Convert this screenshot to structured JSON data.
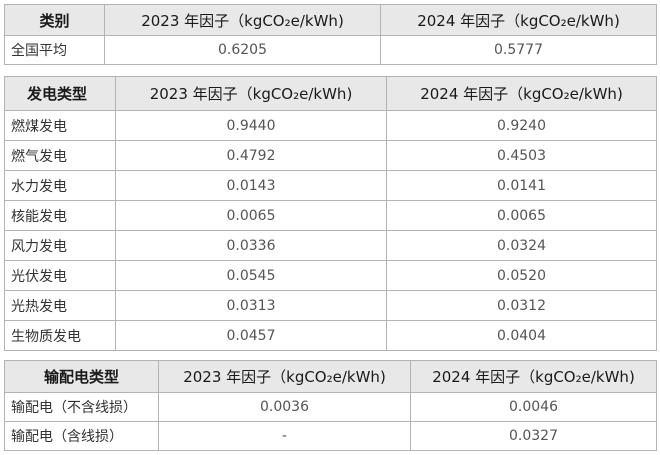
{
  "national": {
    "header": [
      "类别",
      "2023 年因子（kgCO₂e/kWh)",
      "2024 年因子（kgCO₂e/kWh)"
    ],
    "rows": [
      {
        "label": "全国平均",
        "v2023": "0.6205",
        "v2024": "0.5777"
      }
    ]
  },
  "generation": {
    "header": [
      "发电类型",
      "2023 年因子（kgCO₂e/kWh)",
      "2024 年因子（kgCO₂e/kWh)"
    ],
    "rows": [
      {
        "label": "燃煤发电",
        "v2023": "0.9440",
        "v2024": "0.9240"
      },
      {
        "label": "燃气发电",
        "v2023": "0.4792",
        "v2024": "0.4503"
      },
      {
        "label": "水力发电",
        "v2023": "0.0143",
        "v2024": "0.0141"
      },
      {
        "label": "核能发电",
        "v2023": "0.0065",
        "v2024": "0.0065"
      },
      {
        "label": "风力发电",
        "v2023": "0.0336",
        "v2024": "0.0324"
      },
      {
        "label": "光伏发电",
        "v2023": "0.0545",
        "v2024": "0.0520"
      },
      {
        "label": "光热发电",
        "v2023": "0.0313",
        "v2024": "0.0312"
      },
      {
        "label": "生物质发电",
        "v2023": "0.0457",
        "v2024": "0.0404"
      }
    ]
  },
  "transmission": {
    "header": [
      "输配电类型",
      "2023 年因子（kgCO₂e/kWh)",
      "2024 年因子（kgCO₂e/kWh)"
    ],
    "rows": [
      {
        "label": "输配电（不含线损）",
        "v2023": "0.0036",
        "v2024": "0.0046"
      },
      {
        "label": "输配电（含线损）",
        "v2023": "-",
        "v2024": "0.0327"
      }
    ]
  }
}
